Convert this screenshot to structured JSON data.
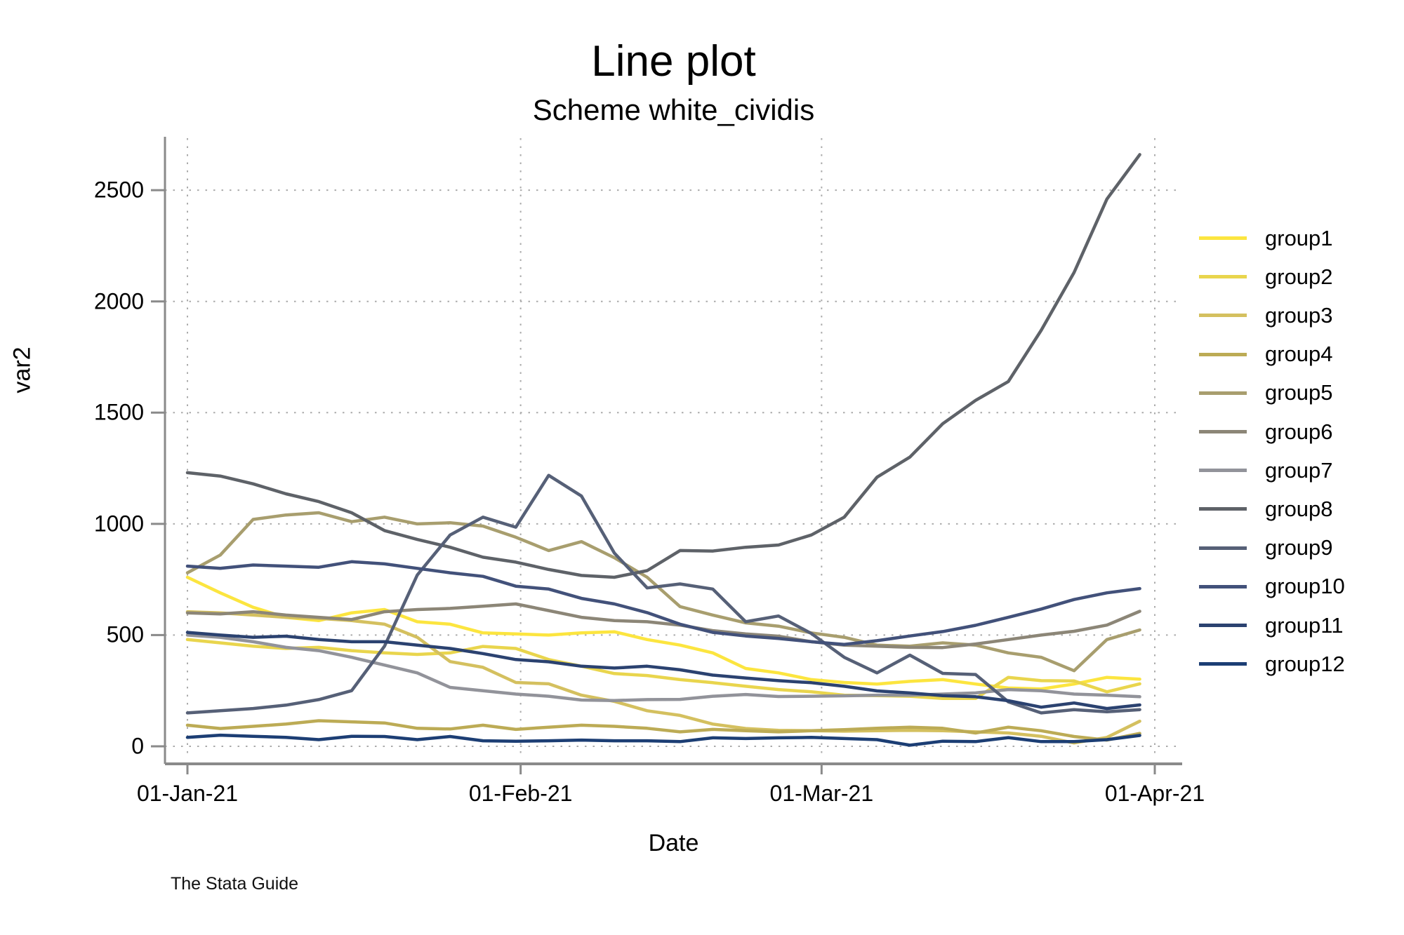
{
  "chart_data": {
    "type": "line",
    "title": "Line plot",
    "subtitle": "Scheme white_cividis",
    "xlabel": "Date",
    "ylabel": "var2",
    "caption": "The Stata Guide",
    "x_axis": {
      "tick_labels": [
        "01-Jan-21",
        "01-Feb-21",
        "01-Mar-21",
        "01-Apr-21"
      ],
      "tick_days": [
        0,
        31,
        59,
        90
      ],
      "start_day": 0,
      "end_day": 88.6
    },
    "y_axis": {
      "ticks": [
        0,
        500,
        1000,
        1500,
        2000,
        2500
      ],
      "ylim": [
        0,
        2500
      ]
    },
    "grid": true,
    "legend_position": "right",
    "series": [
      {
        "name": "group1",
        "color": "#FCE53F",
        "values": [
          760,
          690,
          625,
          580,
          565,
          600,
          615,
          560,
          549,
          510,
          505,
          500,
          510,
          515,
          480,
          455,
          420,
          350,
          330,
          300,
          287,
          280,
          292,
          300,
          280,
          262,
          258,
          280,
          310,
          302
        ]
      },
      {
        "name": "group2",
        "color": "#E9D54D",
        "values": [
          480,
          465,
          450,
          440,
          445,
          430,
          420,
          413,
          420,
          449,
          440,
          390,
          360,
          327,
          318,
          300,
          286,
          270,
          255,
          245,
          230,
          228,
          225,
          215,
          215,
          310,
          295,
          294,
          245,
          281
        ]
      },
      {
        "name": "group3",
        "color": "#D4C05F",
        "values": [
          605,
          600,
          590,
          580,
          575,
          565,
          549,
          490,
          381,
          355,
          287,
          281,
          230,
          202,
          160,
          139,
          100,
          80,
          72,
          70,
          68,
          70,
          72,
          70,
          65,
          60,
          45,
          15,
          40,
          113
        ]
      },
      {
        "name": "group4",
        "color": "#BCAB55",
        "values": [
          95,
          80,
          90,
          100,
          115,
          110,
          105,
          81,
          78,
          95,
          76,
          86,
          95,
          90,
          81,
          65,
          76,
          70,
          65,
          70,
          75,
          81,
          86,
          81,
          60,
          86,
          70,
          44,
          28,
          58
        ]
      },
      {
        "name": "group5",
        "color": "#A89E6E",
        "values": [
          780,
          860,
          1020,
          1040,
          1050,
          1010,
          1030,
          1000,
          1005,
          990,
          940,
          880,
          920,
          848,
          760,
          628,
          590,
          555,
          540,
          510,
          490,
          455,
          450,
          465,
          455,
          420,
          400,
          340,
          480,
          523
        ]
      },
      {
        "name": "group6",
        "color": "#8C8677",
        "values": [
          600,
          595,
          605,
          590,
          580,
          570,
          605,
          615,
          620,
          630,
          640,
          610,
          580,
          565,
          560,
          545,
          520,
          505,
          495,
          470,
          455,
          450,
          445,
          444,
          460,
          480,
          500,
          517,
          545,
          607
        ]
      },
      {
        "name": "group7",
        "color": "#92939A",
        "values": [
          500,
          490,
          470,
          445,
          430,
          400,
          365,
          330,
          265,
          250,
          235,
          225,
          208,
          206,
          210,
          211,
          225,
          233,
          224,
          225,
          227,
          230,
          230,
          235,
          240,
          255,
          250,
          235,
          230,
          223
        ]
      },
      {
        "name": "group8",
        "color": "#5E6268",
        "values": [
          1230,
          1215,
          1180,
          1135,
          1100,
          1050,
          970,
          930,
          895,
          850,
          828,
          795,
          768,
          760,
          790,
          880,
          878,
          895,
          905,
          950,
          1030,
          1210,
          1300,
          1450,
          1555,
          1640,
          1870,
          2130,
          2460,
          2660
        ]
      },
      {
        "name": "group9",
        "color": "#566077",
        "values": [
          150,
          160,
          170,
          185,
          210,
          250,
          450,
          770,
          950,
          1030,
          985,
          1218,
          1125,
          869,
          712,
          730,
          707,
          560,
          586,
          507,
          400,
          330,
          410,
          328,
          323,
          200,
          150,
          165,
          155,
          165
        ]
      },
      {
        "name": "group10",
        "color": "#42517A",
        "values": [
          810,
          800,
          815,
          810,
          805,
          830,
          820,
          800,
          780,
          764,
          720,
          707,
          665,
          640,
          601,
          549,
          512,
          496,
          485,
          470,
          458,
          475,
          496,
          516,
          544,
          580,
          617,
          660,
          690,
          709
        ]
      },
      {
        "name": "group11",
        "color": "#2B4270",
        "values": [
          512,
          500,
          490,
          495,
          480,
          470,
          470,
          455,
          440,
          417,
          390,
          380,
          360,
          352,
          360,
          344,
          320,
          307,
          295,
          286,
          270,
          249,
          240,
          228,
          223,
          205,
          176,
          195,
          170,
          186
        ]
      },
      {
        "name": "group12",
        "color": "#1C3E74",
        "values": [
          40,
          50,
          45,
          40,
          30,
          45,
          44,
          30,
          44,
          25,
          23,
          25,
          28,
          25,
          25,
          21,
          38,
          35,
          38,
          40,
          35,
          30,
          5,
          23,
          21,
          39,
          21,
          21,
          30,
          49
        ]
      }
    ]
  }
}
